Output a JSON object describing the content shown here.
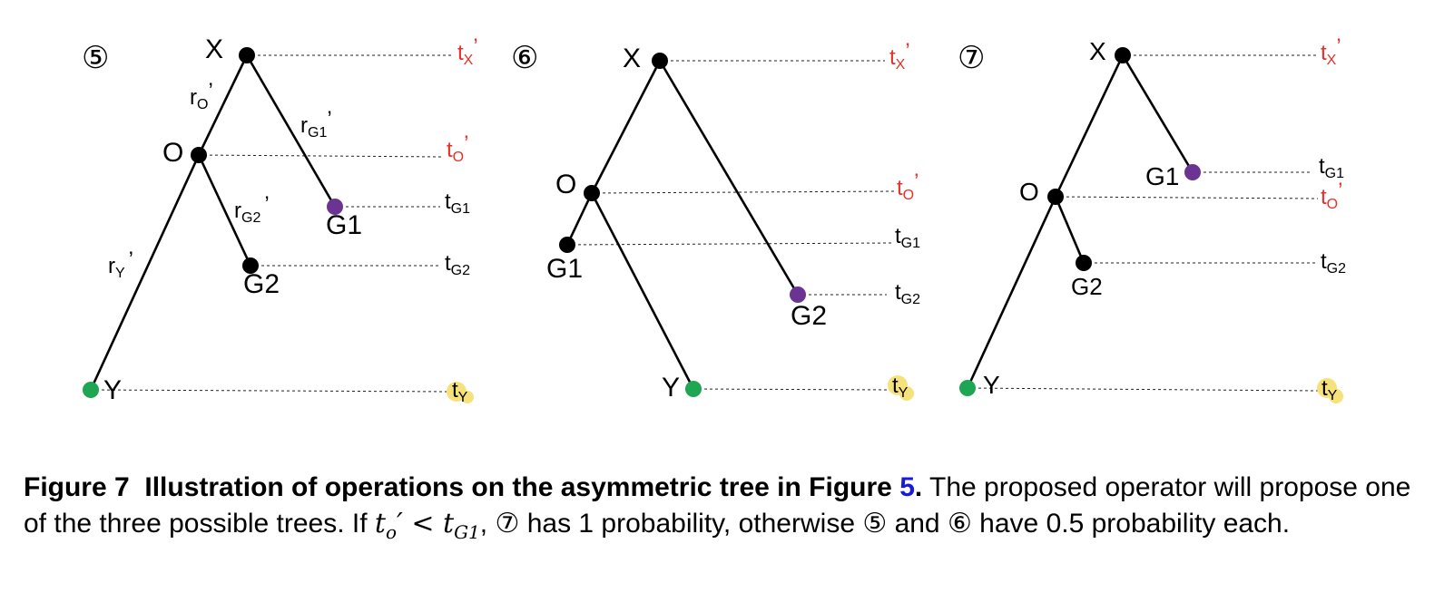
{
  "figure": {
    "panels": [
      {
        "marker": "⑤",
        "nodes": {
          "X": "X",
          "O": "O",
          "G1": "G1",
          "G2": "G2",
          "Y": "Y"
        },
        "branch_labels": {
          "rO_base": "r",
          "rO_sub": "O",
          "rO_tail": "’",
          "rG1_base": "r",
          "rG1_sub": "G1",
          "rG1_tail": "’",
          "rG2_base": "r",
          "rG2_sub": "G2",
          "rG2_tail": "’",
          "rY_base": "r",
          "rY_sub": "Y",
          "rY_tail": "’"
        },
        "times": [
          {
            "base": "t",
            "sub": "X",
            "tail": "’"
          },
          {
            "base": "t",
            "sub": "O",
            "tail": "’"
          },
          {
            "base": "t",
            "sub": "G1",
            "tail": ""
          },
          {
            "base": "t",
            "sub": "G2",
            "tail": ""
          },
          {
            "base": "t",
            "sub": "Y",
            "tail": ""
          }
        ]
      },
      {
        "marker": "⑥",
        "nodes": {
          "X": "X",
          "O": "O",
          "G1": "G1",
          "G2": "G2",
          "Y": "Y"
        },
        "times": [
          {
            "base": "t",
            "sub": "X",
            "tail": "’"
          },
          {
            "base": "t",
            "sub": "O",
            "tail": "’"
          },
          {
            "base": "t",
            "sub": "G1",
            "tail": ""
          },
          {
            "base": "t",
            "sub": "G2",
            "tail": ""
          },
          {
            "base": "t",
            "sub": "Y",
            "tail": ""
          }
        ]
      },
      {
        "marker": "⑦",
        "nodes": {
          "X": "X",
          "O": "O",
          "G1": "G1",
          "G2": "G2",
          "Y": "Y"
        },
        "times": [
          {
            "base": "t",
            "sub": "X",
            "tail": "’"
          },
          {
            "base": "t",
            "sub": "G1",
            "tail": ""
          },
          {
            "base": "t",
            "sub": "O",
            "tail": "’"
          },
          {
            "base": "t",
            "sub": "G2",
            "tail": ""
          },
          {
            "base": "t",
            "sub": "Y",
            "tail": ""
          }
        ]
      }
    ],
    "colors": {
      "internal_node": "#000000",
      "g1_node": "#6b3392",
      "y_node": "#1fa653",
      "red_label": "#e8302a",
      "highlight": "#f6e27a"
    }
  },
  "caption": {
    "label": "Figure 7",
    "title_pre": "Illustration of operations on the asymmetric tree in Figure ",
    "ref": "5",
    "title_post": ".",
    "body1": " The proposed operator will propose one of the three possible trees. If ",
    "math_a": "t",
    "math_a_sub": "o",
    "math_a_prime": "′",
    "math_lt": " < ",
    "math_b": "t",
    "math_b_sub": "G1",
    "body2": ", ⑦ has 1 probability, otherwise ⑤ and ⑥ have 0.5 probability each."
  }
}
